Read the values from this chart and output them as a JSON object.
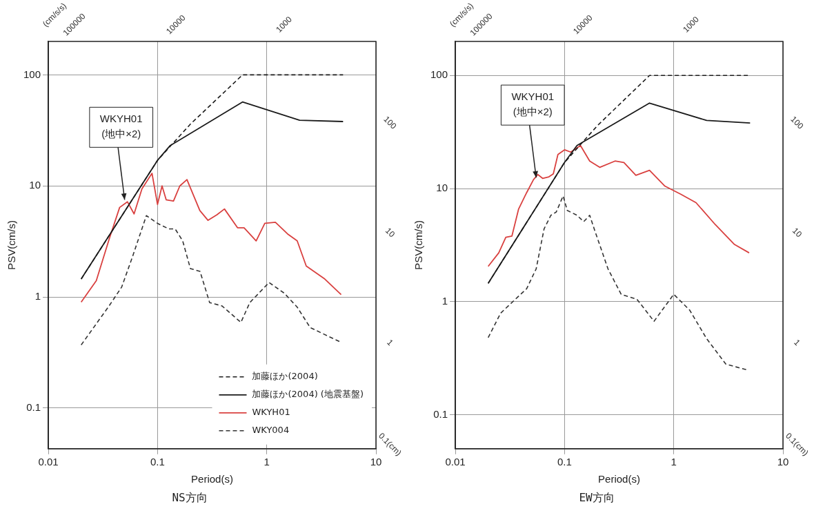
{
  "chart_data": [
    {
      "type": "line",
      "title": "NS方向",
      "xlabel": "Period(s)",
      "ylabel": "PSV(cm/s)",
      "log": "xy",
      "grid": true,
      "legend": "bottom right",
      "marker": "none",
      "xlim": [
        0.01,
        10
      ],
      "xticks": [
        0.01,
        0.1,
        1,
        10
      ],
      "ylim": [
        0.043,
        200
      ],
      "yticks": [
        0.1,
        1,
        10,
        100
      ],
      "annotations": [
        {
          "text": "WKYH01\n(地中×2)",
          "x": 0.05,
          "y": 7.5
        },
        "(cm/s/s)",
        "100000",
        "10000",
        "1000",
        "100",
        "10",
        "1",
        "0.1(cm)"
      ],
      "series": [
        {
          "name": "加藤ほか(2004)",
          "color": "#1a1a1a",
          "line_style": "dashed",
          "x": [
            0.02,
            0.1,
            0.2,
            0.6,
            5
          ],
          "values": [
            1.45,
            17,
            36,
            100,
            100
          ]
        },
        {
          "name": "加藤ほか(2004) (地震基盤)",
          "color": "#1a1a1a",
          "line_style": "solid",
          "x": [
            0.02,
            0.1,
            0.13,
            0.6,
            2,
            5
          ],
          "values": [
            1.45,
            17,
            23,
            57,
            39,
            38
          ]
        },
        {
          "name": "WKYH01",
          "color": "#d9403f",
          "line_style": "solid",
          "x": [
            0.02,
            0.0275,
            0.036,
            0.045,
            0.053,
            0.061,
            0.072,
            0.089,
            0.1,
            0.11,
            0.12,
            0.14,
            0.16,
            0.186,
            0.244,
            0.29,
            0.35,
            0.41,
            0.54,
            0.62,
            0.8,
            0.96,
            1.2,
            1.55,
            1.9,
            2.3,
            3.4,
            4.8
          ],
          "values": [
            0.9,
            1.4,
            3.3,
            6.4,
            7.2,
            5.6,
            9.4,
            13,
            6.8,
            10,
            7.5,
            7.3,
            10,
            11.4,
            6,
            4.9,
            5.5,
            6.2,
            4.2,
            4.2,
            3.2,
            4.6,
            4.7,
            3.7,
            3.2,
            1.9,
            1.45,
            1.05
          ]
        },
        {
          "name": "WKY004",
          "color": "#333333",
          "line_style": "dashed",
          "x": [
            0.02,
            0.036,
            0.047,
            0.059,
            0.079,
            0.1,
            0.127,
            0.145,
            0.17,
            0.2,
            0.245,
            0.3,
            0.39,
            0.58,
            0.7,
            1.05,
            1.45,
            1.9,
            2.5,
            4.8
          ],
          "values": [
            0.37,
            0.83,
            1.23,
            2.3,
            5.4,
            4.6,
            4.1,
            4.1,
            3.2,
            1.8,
            1.7,
            0.89,
            0.83,
            0.59,
            0.89,
            1.35,
            1.08,
            0.81,
            0.53,
            0.39
          ]
        }
      ]
    },
    {
      "type": "line",
      "title": "EW方向",
      "xlabel": "Period(s)",
      "ylabel": "PSV(cm/s)",
      "log": "xy",
      "grid": true,
      "marker": "none",
      "xlim": [
        0.01,
        10
      ],
      "xticks": [
        0.01,
        0.1,
        1,
        10
      ],
      "ylim": [
        0.05,
        200
      ],
      "yticks": [
        0.1,
        1,
        10,
        100
      ],
      "annotations": [
        {
          "text": "WKYH01\n(地中×2)",
          "x": 0.055,
          "y": 12.5
        },
        "(cm/s/s)",
        "100000",
        "10000",
        "1000",
        "100",
        "10",
        "1",
        "0.1(cm)"
      ],
      "series": [
        {
          "color": "#1a1a1a",
          "line_style": "dashed",
          "x": [
            0.02,
            0.1,
            0.2,
            0.6,
            5
          ],
          "values": [
            1.45,
            17,
            36,
            100,
            100
          ]
        },
        {
          "color": "#1a1a1a",
          "line_style": "solid",
          "x": [
            0.02,
            0.1,
            0.13,
            0.6,
            2,
            5
          ],
          "values": [
            1.45,
            17,
            24,
            57,
            40,
            38
          ]
        },
        {
          "color": "#d9403f",
          "line_style": "solid",
          "x": [
            0.02,
            0.025,
            0.029,
            0.033,
            0.038,
            0.045,
            0.052,
            0.057,
            0.063,
            0.072,
            0.079,
            0.087,
            0.1,
            0.114,
            0.14,
            0.17,
            0.21,
            0.29,
            0.35,
            0.45,
            0.6,
            0.83,
            1.16,
            1.6,
            2.4,
            3.6,
            4.9
          ],
          "values": [
            2.05,
            2.7,
            3.7,
            3.8,
            6.6,
            9.2,
            12,
            13.3,
            12.3,
            12.7,
            13.5,
            20,
            22,
            21,
            24,
            17.5,
            15.4,
            17.5,
            17,
            13.1,
            14.5,
            10.5,
            8.9,
            7.5,
            4.8,
            3.2,
            2.7
          ]
        },
        {
          "color": "#333333",
          "line_style": "dashed",
          "x": [
            0.02,
            0.026,
            0.037,
            0.045,
            0.055,
            0.065,
            0.075,
            0.084,
            0.097,
            0.106,
            0.13,
            0.15,
            0.17,
            0.19,
            0.25,
            0.33,
            0.46,
            0.66,
            1.0,
            1.4,
            2.0,
            3.0,
            4.6
          ],
          "values": [
            0.48,
            0.79,
            1.09,
            1.3,
            1.95,
            4.4,
            5.8,
            6.2,
            8.6,
            6.4,
            5.8,
            5.1,
            5.8,
            4.2,
            1.95,
            1.16,
            1.05,
            0.67,
            1.16,
            0.84,
            0.47,
            0.28,
            0.25
          ]
        }
      ]
    }
  ]
}
